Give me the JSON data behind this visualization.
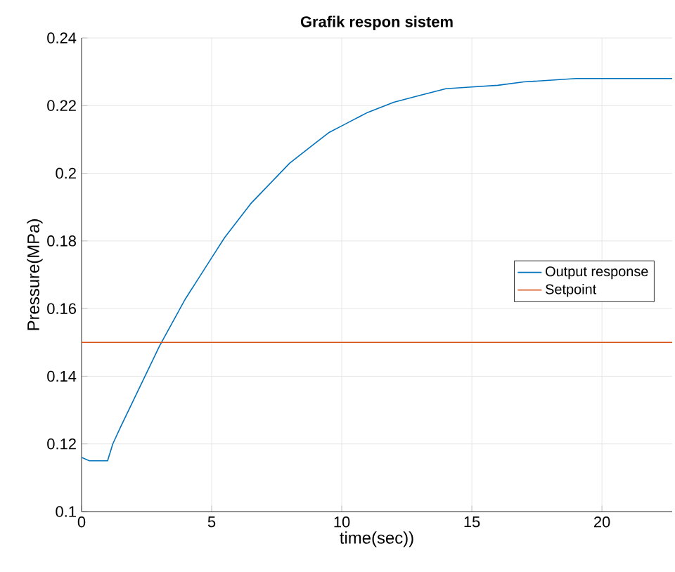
{
  "chart_data": {
    "type": "line",
    "title": "Grafik respon sistem",
    "xlabel": "time(sec))",
    "ylabel": "Pressure(MPa)",
    "xlim": [
      0,
      22.7
    ],
    "ylim": [
      0.1,
      0.24
    ],
    "xticks": [
      0,
      5,
      10,
      15,
      20
    ],
    "yticks": [
      0.1,
      0.12,
      0.14,
      0.16,
      0.18,
      0.2,
      0.22,
      0.24
    ],
    "grid": true,
    "legend": "right",
    "series": [
      {
        "name": "Output response",
        "color": "#0072bd",
        "x": [
          0,
          0.3,
          1.0,
          1.2,
          1.5,
          2,
          2.5,
          3,
          3.5,
          4,
          4.5,
          5,
          5.5,
          6,
          6.5,
          7,
          7.5,
          8,
          8.5,
          9,
          9.5,
          10,
          11,
          12,
          13,
          14,
          15,
          16,
          17,
          18,
          19,
          20,
          21,
          22.7
        ],
        "values": [
          0.116,
          0.115,
          0.115,
          0.12,
          0.125,
          0.133,
          0.141,
          0.149,
          0.156,
          0.163,
          0.169,
          0.175,
          0.181,
          0.186,
          0.191,
          0.195,
          0.199,
          0.203,
          0.206,
          0.209,
          0.212,
          0.214,
          0.218,
          0.221,
          0.223,
          0.225,
          0.2255,
          0.226,
          0.227,
          0.2275,
          0.228,
          0.228,
          0.228,
          0.228
        ]
      },
      {
        "name": "Setpoint",
        "color": "#d95319",
        "x": [
          0,
          22.7
        ],
        "values": [
          0.15,
          0.15
        ]
      }
    ]
  }
}
